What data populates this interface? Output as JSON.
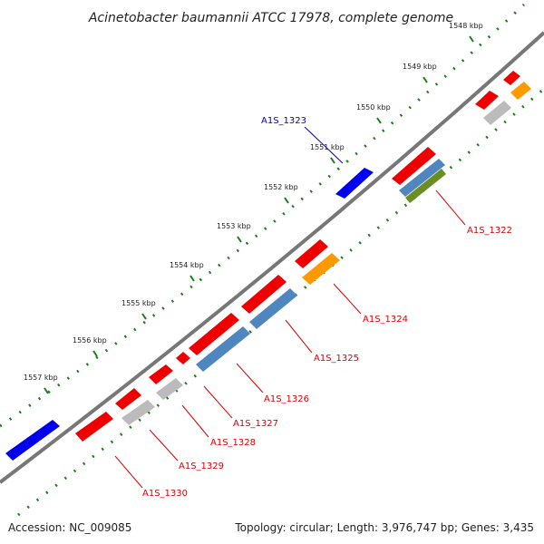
{
  "title": "Acinetobacter baumannii ATCC 17978, complete genome",
  "accession": "Accession: NC_009085",
  "summary": "Topology: circular; Length: 3,976,747 bp; Genes: 3,435",
  "kbp_ticks": [
    "1548 kbp",
    "1549 kbp",
    "1550 kbp",
    "1551 kbp",
    "1552 kbp",
    "1553 kbp",
    "1554 kbp",
    "1555 kbp",
    "1556 kbp",
    "1557 kbp"
  ],
  "gene_labels": [
    "A1S_1323",
    "A1S_1322",
    "A1S_1324",
    "A1S_1325",
    "A1S_1326",
    "A1S_1327",
    "A1S_1328",
    "A1S_1329",
    "A1S_1330"
  ],
  "colors": {
    "forward_gene": "#0000ee",
    "reverse_gene": "#ee0000",
    "cds_blue": "#4f86bf",
    "cds_orange": "#ff9900",
    "cds_gray": "#bbbbbb",
    "cds_green": "#6b8e23",
    "backbone": "#777777",
    "tick": "#1a7f1a",
    "forward_label": "#0000cc",
    "reverse_label": "#dd0000"
  }
}
